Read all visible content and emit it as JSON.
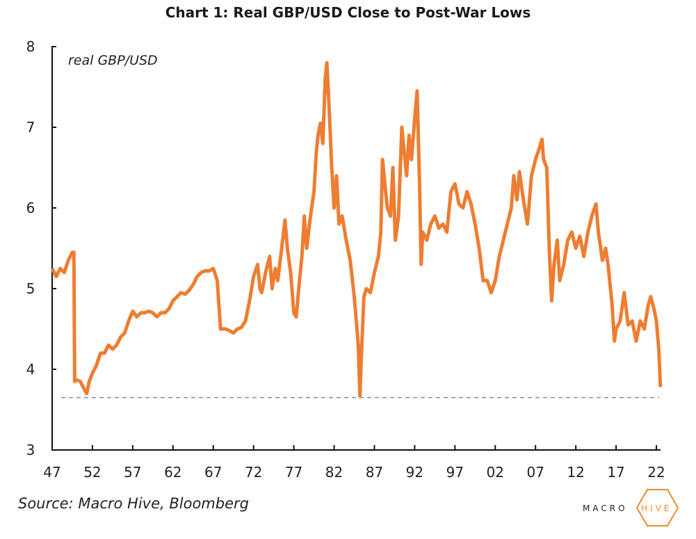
{
  "chart_data": {
    "type": "line",
    "title": "Chart 1: Real GBP/USD Close to Post-War Lows",
    "series_label": "real GBP/USD",
    "xlabel": "",
    "ylabel": "",
    "ylim": [
      3,
      8
    ],
    "xlim": [
      1947,
      2022.6
    ],
    "yticks": [
      "3",
      "4",
      "5",
      "6",
      "7",
      "8"
    ],
    "ytick_values": [
      3,
      4,
      5,
      6,
      7,
      8
    ],
    "xticks": [
      "47",
      "52",
      "57",
      "62",
      "67",
      "72",
      "77",
      "82",
      "87",
      "92",
      "97",
      "02",
      "07",
      "12",
      "17",
      "22"
    ],
    "xtick_values": [
      1947,
      1952,
      1957,
      1962,
      1967,
      1972,
      1977,
      1982,
      1987,
      1992,
      1997,
      2002,
      2007,
      2012,
      2017,
      2022
    ],
    "reference_line": {
      "value": 3.65,
      "style": "dashed",
      "color": "#6f8fc4"
    },
    "grid": false,
    "line_color": "#ee7d31",
    "series": [
      {
        "name": "real GBP/USD",
        "x": [
          1947,
          1947.5,
          1948,
          1948.5,
          1949,
          1949.5,
          1949.7,
          1949.8,
          1950,
          1950.5,
          1951,
          1951.3,
          1951.6,
          1952,
          1952.5,
          1953,
          1953.5,
          1954,
          1954.5,
          1955,
          1955.5,
          1956,
          1956.5,
          1957,
          1957.5,
          1958,
          1958.5,
          1959,
          1959.5,
          1960,
          1960.5,
          1961,
          1961.5,
          1962,
          1962.5,
          1963,
          1963.5,
          1964,
          1964.5,
          1965,
          1965.5,
          1966,
          1966.5,
          1967,
          1967.5,
          1967.9,
          1968.5,
          1969,
          1969.5,
          1970,
          1970.5,
          1971,
          1971.5,
          1972,
          1972.5,
          1972.8,
          1973,
          1973.5,
          1974,
          1974.3,
          1974.7,
          1975,
          1975.5,
          1975.9,
          1976.2,
          1976.6,
          1977,
          1977.3,
          1977.7,
          1978,
          1978.3,
          1978.6,
          1979,
          1979.5,
          1979.8,
          1980,
          1980.3,
          1980.6,
          1980.9,
          1981.1,
          1981.4,
          1981.7,
          1982,
          1982.3,
          1982.6,
          1983,
          1983.5,
          1984,
          1984.5,
          1985,
          1985.2,
          1985.4,
          1985.7,
          1986,
          1986.5,
          1987,
          1987.5,
          1987.8,
          1988,
          1988.3,
          1988.6,
          1989,
          1989.3,
          1989.6,
          1990,
          1990.4,
          1990.7,
          1991,
          1991.3,
          1991.6,
          1992,
          1992.3,
          1992.6,
          1992.8,
          1993,
          1993.5,
          1994,
          1994.5,
          1995,
          1995.5,
          1996,
          1996.5,
          1997,
          1997.5,
          1998,
          1998.5,
          1999,
          1999.5,
          2000,
          2000.5,
          2001,
          2001.5,
          2002,
          2002.5,
          2003,
          2003.5,
          2004,
          2004.3,
          2004.7,
          2005,
          2005.5,
          2006,
          2006.5,
          2007,
          2007.5,
          2007.8,
          2008,
          2008.4,
          2008.7,
          2009,
          2009.3,
          2009.7,
          2010,
          2010.5,
          2011,
          2011.5,
          2012,
          2012.5,
          2013,
          2013.5,
          2014,
          2014.5,
          2014.8,
          2015.3,
          2015.7,
          2016,
          2016.5,
          2016.8,
          2017,
          2017.5,
          2018,
          2018.5,
          2019,
          2019.5,
          2020,
          2020.5,
          2021,
          2021.3,
          2021.7,
          2022,
          2022.3,
          2022.5
        ],
        "values": [
          5.25,
          5.15,
          5.25,
          5.2,
          5.35,
          5.45,
          5.45,
          3.85,
          3.87,
          3.85,
          3.75,
          3.7,
          3.85,
          3.95,
          4.05,
          4.2,
          4.2,
          4.3,
          4.25,
          4.3,
          4.4,
          4.45,
          4.6,
          4.72,
          4.65,
          4.7,
          4.7,
          4.72,
          4.7,
          4.65,
          4.7,
          4.7,
          4.75,
          4.85,
          4.9,
          4.95,
          4.93,
          4.98,
          5.05,
          5.15,
          5.2,
          5.22,
          5.22,
          5.25,
          5.1,
          4.5,
          4.5,
          4.48,
          4.45,
          4.5,
          4.52,
          4.6,
          4.85,
          5.15,
          5.3,
          5.0,
          4.95,
          5.2,
          5.4,
          5.0,
          5.25,
          5.1,
          5.5,
          5.85,
          5.5,
          5.2,
          4.7,
          4.65,
          5.1,
          5.4,
          5.9,
          5.5,
          5.85,
          6.2,
          6.7,
          6.9,
          7.05,
          6.8,
          7.6,
          7.8,
          7.2,
          6.5,
          6.0,
          6.4,
          5.8,
          5.9,
          5.6,
          5.35,
          4.9,
          4.3,
          3.67,
          4.2,
          4.9,
          5.0,
          4.95,
          5.2,
          5.4,
          5.7,
          6.6,
          6.3,
          6.0,
          5.9,
          6.5,
          5.6,
          5.9,
          7.0,
          6.7,
          6.4,
          6.9,
          6.6,
          7.1,
          7.45,
          6.3,
          5.3,
          5.7,
          5.6,
          5.8,
          5.9,
          5.75,
          5.8,
          5.7,
          6.2,
          6.3,
          6.05,
          6.0,
          6.2,
          6.05,
          5.8,
          5.5,
          5.1,
          5.1,
          4.95,
          5.1,
          5.4,
          5.6,
          5.8,
          6.0,
          6.4,
          6.1,
          6.45,
          6.1,
          5.8,
          6.4,
          6.6,
          6.75,
          6.85,
          6.6,
          6.5,
          5.5,
          4.85,
          5.3,
          5.6,
          5.1,
          5.3,
          5.6,
          5.7,
          5.5,
          5.65,
          5.4,
          5.7,
          5.9,
          6.05,
          5.7,
          5.35,
          5.5,
          5.3,
          4.8,
          4.35,
          4.5,
          4.6,
          4.95,
          4.55,
          4.6,
          4.35,
          4.6,
          4.5,
          4.8,
          4.9,
          4.75,
          4.6,
          4.25,
          3.78
        ]
      }
    ]
  },
  "source": "Source: Macro Hive, Bloomberg",
  "logo": {
    "text_dark": "MACRO",
    "text_accent": "HIVE",
    "accent_color": "#ee8a2a"
  }
}
